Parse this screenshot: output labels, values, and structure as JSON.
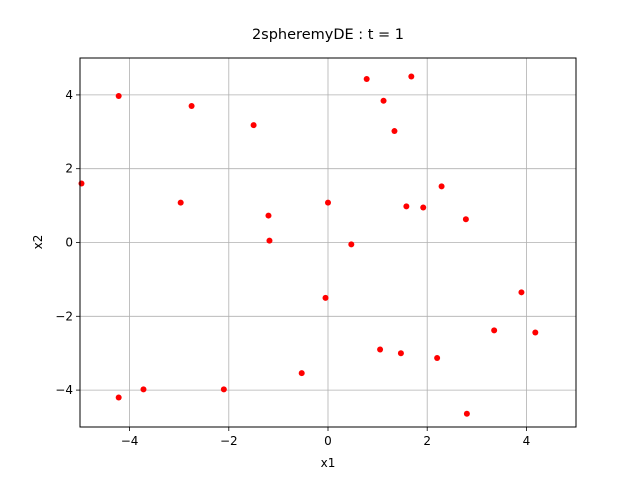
{
  "chart_data": {
    "type": "scatter",
    "title": "2spheremyDE : t =  1",
    "xlabel": "x1",
    "ylabel": "x2",
    "xlim": [
      -5,
      5
    ],
    "ylim": [
      -5,
      5
    ],
    "xticks": [
      -4,
      -2,
      0,
      2,
      4
    ],
    "yticks": [
      -4,
      -2,
      0,
      2,
      4
    ],
    "xtick_labels": [
      "−4",
      "−2",
      "0",
      "2",
      "4"
    ],
    "ytick_labels": [
      "−4",
      "−2",
      "0",
      "2",
      "4"
    ],
    "grid": true,
    "marker_color": "#ff0000",
    "grid_color": "#b0b0b0",
    "points": [
      {
        "x": 0.78,
        "y": 4.43
      },
      {
        "x": 1.68,
        "y": 4.5
      },
      {
        "x": -4.22,
        "y": 3.97
      },
      {
        "x": -2.75,
        "y": 3.7
      },
      {
        "x": 1.12,
        "y": 3.84
      },
      {
        "x": -1.5,
        "y": 3.18
      },
      {
        "x": 1.34,
        "y": 3.02
      },
      {
        "x": -4.97,
        "y": 1.6
      },
      {
        "x": 2.29,
        "y": 1.52
      },
      {
        "x": -2.97,
        "y": 1.08
      },
      {
        "x": 0.0,
        "y": 1.08
      },
      {
        "x": 1.58,
        "y": 0.98
      },
      {
        "x": 1.92,
        "y": 0.95
      },
      {
        "x": -1.2,
        "y": 0.73
      },
      {
        "x": 2.78,
        "y": 0.63
      },
      {
        "x": -1.18,
        "y": 0.05
      },
      {
        "x": 0.47,
        "y": -0.05
      },
      {
        "x": -0.05,
        "y": -1.5
      },
      {
        "x": 3.9,
        "y": -1.35
      },
      {
        "x": 3.35,
        "y": -2.38
      },
      {
        "x": 4.18,
        "y": -2.44
      },
      {
        "x": 1.05,
        "y": -2.9
      },
      {
        "x": 1.47,
        "y": -3.0
      },
      {
        "x": 2.2,
        "y": -3.13
      },
      {
        "x": -0.53,
        "y": -3.54
      },
      {
        "x": -3.72,
        "y": -3.98
      },
      {
        "x": -2.1,
        "y": -3.98
      },
      {
        "x": -4.22,
        "y": -4.2
      },
      {
        "x": 2.8,
        "y": -4.64
      }
    ]
  }
}
